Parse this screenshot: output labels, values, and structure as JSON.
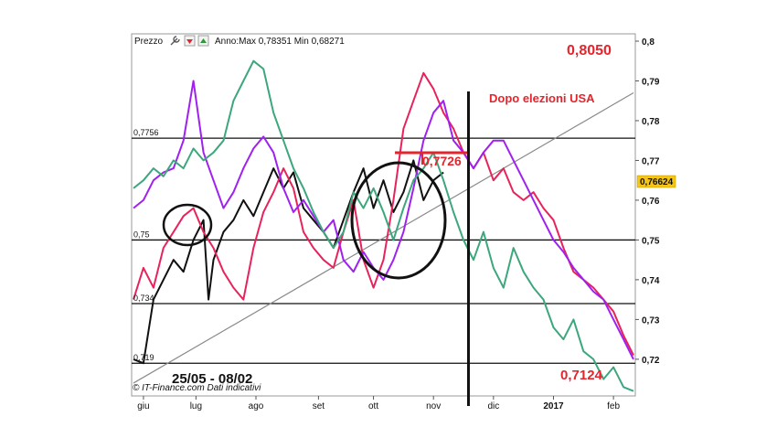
{
  "header": {
    "label": "Prezzo",
    "icons": [
      "wrench-icon",
      "arrow-down-icon",
      "arrow-up-icon"
    ],
    "stats": "Anno:Max 0,78351 Min 0,68271"
  },
  "annotations": {
    "top_price": "0,8050",
    "election": "Dopo elezioni USA",
    "mid_price": "0,7726",
    "bottom_price": "0,7124",
    "date_range": "25/05 - 08/02",
    "copyright": "© IT-Finance.com Dati indicativi"
  },
  "current_price": {
    "label": "0,76624",
    "value": 0.76624,
    "bg": "#f5c518"
  },
  "colors": {
    "black": "#111111",
    "crimson": "#e8235c",
    "magenta": "#a020f0",
    "green": "#3ca77c",
    "annotation_red": "#e3262e"
  },
  "chart_data": {
    "type": "line",
    "ylim": [
      0.711,
      0.8
    ],
    "y_ticks": [
      "0,8",
      "0,79",
      "0,78",
      "0,77",
      "0,76",
      "0,75",
      "0,74",
      "0,73",
      "0,72"
    ],
    "y_tick_values": [
      0.8,
      0.79,
      0.78,
      0.77,
      0.76,
      0.75,
      0.74,
      0.73,
      0.72
    ],
    "x_ticks": [
      "giu",
      "lug",
      "ago",
      "set",
      "ott",
      "nov",
      "dic",
      "2017",
      "feb"
    ],
    "x_tick_pos": [
      0.02,
      0.125,
      0.245,
      0.37,
      0.48,
      0.6,
      0.72,
      0.84,
      0.96
    ],
    "levels": [
      {
        "label": "0,7756",
        "value": 0.7756
      },
      {
        "label": "0,75",
        "value": 0.75
      },
      {
        "label": "0,734",
        "value": 0.734
      },
      {
        "label": "0,719",
        "value": 0.719
      }
    ],
    "trendline": {
      "from": [
        0.0,
        0.714
      ],
      "to": [
        1.0,
        0.787
      ]
    },
    "election_marker_x": 0.67,
    "series": [
      {
        "color": "black",
        "points": [
          [
            0.0,
            0.72
          ],
          [
            0.02,
            0.719
          ],
          [
            0.04,
            0.735
          ],
          [
            0.06,
            0.74
          ],
          [
            0.08,
            0.745
          ],
          [
            0.1,
            0.742
          ],
          [
            0.12,
            0.75
          ],
          [
            0.14,
            0.755
          ],
          [
            0.15,
            0.735
          ],
          [
            0.16,
            0.745
          ],
          [
            0.18,
            0.752
          ],
          [
            0.2,
            0.755
          ],
          [
            0.22,
            0.76
          ],
          [
            0.24,
            0.756
          ],
          [
            0.26,
            0.762
          ],
          [
            0.28,
            0.768
          ],
          [
            0.3,
            0.763
          ],
          [
            0.32,
            0.767
          ],
          [
            0.34,
            0.758
          ],
          [
            0.36,
            0.755
          ],
          [
            0.38,
            0.752
          ],
          [
            0.4,
            0.748
          ],
          [
            0.42,
            0.755
          ],
          [
            0.44,
            0.762
          ],
          [
            0.46,
            0.768
          ],
          [
            0.48,
            0.758
          ],
          [
            0.5,
            0.765
          ],
          [
            0.52,
            0.757
          ],
          [
            0.54,
            0.762
          ],
          [
            0.56,
            0.77
          ],
          [
            0.58,
            0.76
          ],
          [
            0.6,
            0.765
          ],
          [
            0.62,
            0.767
          ]
        ]
      },
      {
        "color": "crimson",
        "points": [
          [
            0.0,
            0.735
          ],
          [
            0.02,
            0.743
          ],
          [
            0.04,
            0.738
          ],
          [
            0.06,
            0.748
          ],
          [
            0.08,
            0.752
          ],
          [
            0.1,
            0.756
          ],
          [
            0.12,
            0.758
          ],
          [
            0.14,
            0.752
          ],
          [
            0.16,
            0.748
          ],
          [
            0.18,
            0.742
          ],
          [
            0.2,
            0.738
          ],
          [
            0.22,
            0.735
          ],
          [
            0.24,
            0.748
          ],
          [
            0.26,
            0.757
          ],
          [
            0.28,
            0.762
          ],
          [
            0.3,
            0.768
          ],
          [
            0.32,
            0.763
          ],
          [
            0.34,
            0.752
          ],
          [
            0.36,
            0.748
          ],
          [
            0.38,
            0.745
          ],
          [
            0.4,
            0.743
          ],
          [
            0.42,
            0.752
          ],
          [
            0.44,
            0.76
          ],
          [
            0.46,
            0.745
          ],
          [
            0.48,
            0.738
          ],
          [
            0.5,
            0.745
          ],
          [
            0.52,
            0.76
          ],
          [
            0.54,
            0.778
          ],
          [
            0.56,
            0.785
          ],
          [
            0.58,
            0.792
          ],
          [
            0.6,
            0.788
          ],
          [
            0.62,
            0.782
          ],
          [
            0.64,
            0.778
          ],
          [
            0.66,
            0.772
          ],
          [
            0.68,
            0.768
          ],
          [
            0.7,
            0.772
          ],
          [
            0.72,
            0.765
          ],
          [
            0.74,
            0.768
          ],
          [
            0.76,
            0.762
          ],
          [
            0.78,
            0.76
          ],
          [
            0.8,
            0.762
          ],
          [
            0.82,
            0.758
          ],
          [
            0.84,
            0.755
          ],
          [
            0.86,
            0.748
          ],
          [
            0.88,
            0.742
          ],
          [
            0.9,
            0.74
          ],
          [
            0.92,
            0.738
          ],
          [
            0.94,
            0.735
          ],
          [
            0.96,
            0.732
          ],
          [
            0.98,
            0.726
          ],
          [
            1.0,
            0.721
          ]
        ]
      },
      {
        "color": "magenta",
        "points": [
          [
            0.0,
            0.758
          ],
          [
            0.02,
            0.76
          ],
          [
            0.04,
            0.765
          ],
          [
            0.06,
            0.767
          ],
          [
            0.08,
            0.768
          ],
          [
            0.1,
            0.775
          ],
          [
            0.12,
            0.79
          ],
          [
            0.14,
            0.772
          ],
          [
            0.16,
            0.765
          ],
          [
            0.18,
            0.758
          ],
          [
            0.2,
            0.762
          ],
          [
            0.22,
            0.768
          ],
          [
            0.24,
            0.773
          ],
          [
            0.26,
            0.776
          ],
          [
            0.28,
            0.772
          ],
          [
            0.3,
            0.763
          ],
          [
            0.32,
            0.757
          ],
          [
            0.34,
            0.76
          ],
          [
            0.36,
            0.756
          ],
          [
            0.38,
            0.752
          ],
          [
            0.4,
            0.755
          ],
          [
            0.42,
            0.745
          ],
          [
            0.44,
            0.742
          ],
          [
            0.46,
            0.747
          ],
          [
            0.48,
            0.743
          ],
          [
            0.5,
            0.74
          ],
          [
            0.52,
            0.745
          ],
          [
            0.54,
            0.752
          ],
          [
            0.56,
            0.763
          ],
          [
            0.58,
            0.775
          ],
          [
            0.6,
            0.782
          ],
          [
            0.62,
            0.785
          ],
          [
            0.64,
            0.775
          ],
          [
            0.66,
            0.772
          ],
          [
            0.68,
            0.768
          ],
          [
            0.7,
            0.772
          ],
          [
            0.72,
            0.775
          ],
          [
            0.74,
            0.775
          ],
          [
            0.76,
            0.77
          ],
          [
            0.78,
            0.765
          ],
          [
            0.8,
            0.76
          ],
          [
            0.82,
            0.755
          ],
          [
            0.84,
            0.75
          ],
          [
            0.86,
            0.747
          ],
          [
            0.88,
            0.743
          ],
          [
            0.9,
            0.74
          ],
          [
            0.92,
            0.737
          ],
          [
            0.94,
            0.735
          ],
          [
            0.96,
            0.73
          ],
          [
            0.98,
            0.725
          ],
          [
            1.0,
            0.72
          ]
        ]
      },
      {
        "color": "green",
        "points": [
          [
            0.0,
            0.763
          ],
          [
            0.02,
            0.765
          ],
          [
            0.04,
            0.768
          ],
          [
            0.06,
            0.766
          ],
          [
            0.08,
            0.77
          ],
          [
            0.1,
            0.768
          ],
          [
            0.12,
            0.773
          ],
          [
            0.14,
            0.77
          ],
          [
            0.16,
            0.772
          ],
          [
            0.18,
            0.775
          ],
          [
            0.2,
            0.785
          ],
          [
            0.22,
            0.79
          ],
          [
            0.24,
            0.795
          ],
          [
            0.26,
            0.793
          ],
          [
            0.28,
            0.782
          ],
          [
            0.3,
            0.775
          ],
          [
            0.32,
            0.768
          ],
          [
            0.34,
            0.763
          ],
          [
            0.36,
            0.757
          ],
          [
            0.38,
            0.752
          ],
          [
            0.4,
            0.748
          ],
          [
            0.42,
            0.752
          ],
          [
            0.44,
            0.762
          ],
          [
            0.46,
            0.758
          ],
          [
            0.48,
            0.763
          ],
          [
            0.5,
            0.757
          ],
          [
            0.52,
            0.75
          ],
          [
            0.54,
            0.758
          ],
          [
            0.56,
            0.765
          ],
          [
            0.58,
            0.768
          ],
          [
            0.6,
            0.772
          ],
          [
            0.62,
            0.765
          ],
          [
            0.64,
            0.757
          ],
          [
            0.66,
            0.75
          ],
          [
            0.68,
            0.745
          ],
          [
            0.7,
            0.752
          ],
          [
            0.72,
            0.743
          ],
          [
            0.74,
            0.738
          ],
          [
            0.76,
            0.748
          ],
          [
            0.78,
            0.742
          ],
          [
            0.8,
            0.738
          ],
          [
            0.82,
            0.735
          ],
          [
            0.84,
            0.728
          ],
          [
            0.86,
            0.725
          ],
          [
            0.88,
            0.73
          ],
          [
            0.9,
            0.722
          ],
          [
            0.92,
            0.72
          ],
          [
            0.94,
            0.715
          ],
          [
            0.96,
            0.718
          ],
          [
            0.98,
            0.713
          ],
          [
            1.0,
            0.712
          ]
        ]
      }
    ]
  }
}
